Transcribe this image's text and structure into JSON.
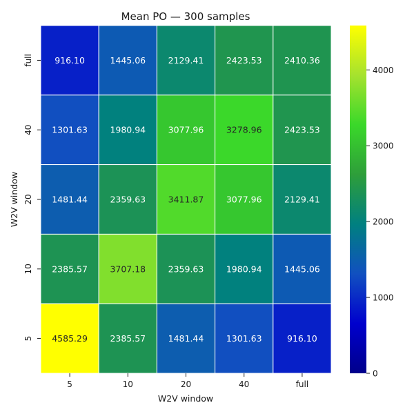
{
  "chart_data": {
    "type": "heatmap",
    "title": "Mean PO — 300 samples",
    "xlabel": "W2V window",
    "ylabel": "W2V window",
    "x_categories": [
      "5",
      "10",
      "20",
      "40",
      "full"
    ],
    "y_categories": [
      "full",
      "40",
      "20",
      "10",
      "5"
    ],
    "values": [
      [
        916.1,
        1445.06,
        2129.41,
        2423.53,
        2410.36
      ],
      [
        1301.63,
        1980.94,
        3077.96,
        3278.96,
        2423.53
      ],
      [
        1481.44,
        2359.63,
        3411.87,
        3077.96,
        2129.41
      ],
      [
        2385.57,
        3707.18,
        2359.63,
        1980.94,
        1445.06
      ],
      [
        4585.29,
        2385.57,
        1481.44,
        1301.63,
        916.1
      ]
    ],
    "value_format": "2 decimals",
    "colorbar": {
      "range": [
        0,
        4585.29
      ],
      "ticks": [
        "0",
        "1000",
        "2000",
        "3000",
        "4000"
      ],
      "colormap": [
        "#00008b",
        "#0000cd",
        "#1150c0",
        "#008080",
        "#2e9e3a",
        "#3ad82a",
        "#a6e22e",
        "#ffff00"
      ]
    }
  }
}
